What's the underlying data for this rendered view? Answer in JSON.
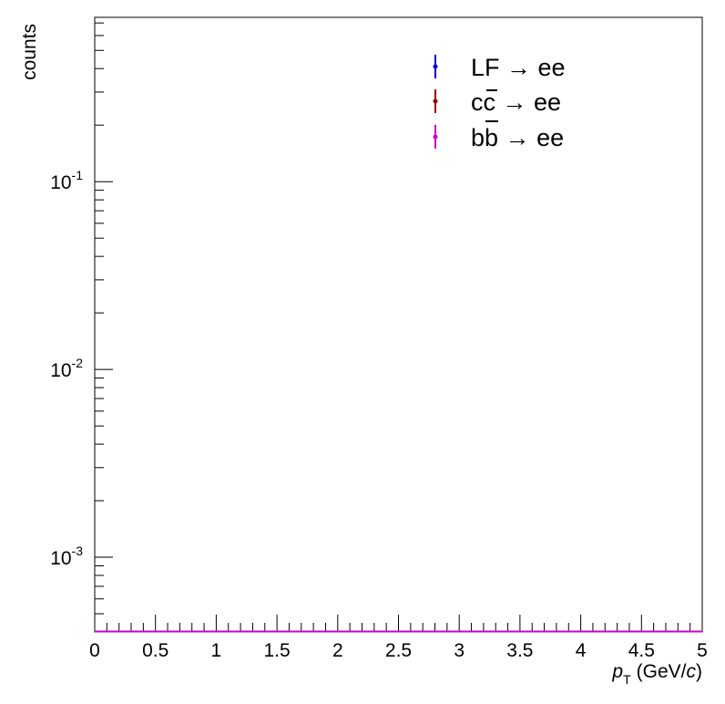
{
  "chart_data": {
    "type": "scatter",
    "xlabel": {
      "var": "p",
      "sub": "T",
      "unit_pre": "(GeV/",
      "unit_var": "c",
      "unit_post": ")"
    },
    "ylabel": "counts",
    "xlim": [
      0,
      5
    ],
    "ylim": [
      0.0004,
      0.75
    ],
    "yscale": "log",
    "grid": false,
    "legend_position": "top-right",
    "x_ticks": [
      {
        "value": 0,
        "label": "0"
      },
      {
        "value": 0.5,
        "label": "0.5"
      },
      {
        "value": 1,
        "label": "1"
      },
      {
        "value": 1.5,
        "label": "1.5"
      },
      {
        "value": 2,
        "label": "2"
      },
      {
        "value": 2.5,
        "label": "2.5"
      },
      {
        "value": 3,
        "label": "3"
      },
      {
        "value": 3.5,
        "label": "3.5"
      },
      {
        "value": 4,
        "label": "4"
      },
      {
        "value": 4.5,
        "label": "4.5"
      },
      {
        "value": 5,
        "label": "5"
      }
    ],
    "y_ticks": [
      {
        "value": 0.001,
        "base": "10",
        "exp": "-3"
      },
      {
        "value": 0.01,
        "base": "10",
        "exp": "-2"
      },
      {
        "value": 0.1,
        "base": "10",
        "exp": "-1"
      }
    ],
    "series": [
      {
        "name": "LF → ee",
        "color": "#0000cc",
        "values": []
      },
      {
        "name": "c̅c → ee",
        "label_parts": {
          "a": "c",
          "b": "c",
          "arrow": " → ee"
        },
        "color": "#990000",
        "values": []
      },
      {
        "name": "b̅b → ee",
        "label_parts": {
          "a": "b",
          "b": "b",
          "arrow": " → ee"
        },
        "color": "#cc00cc",
        "values": []
      }
    ],
    "baseline_color": "#cc00cc"
  }
}
